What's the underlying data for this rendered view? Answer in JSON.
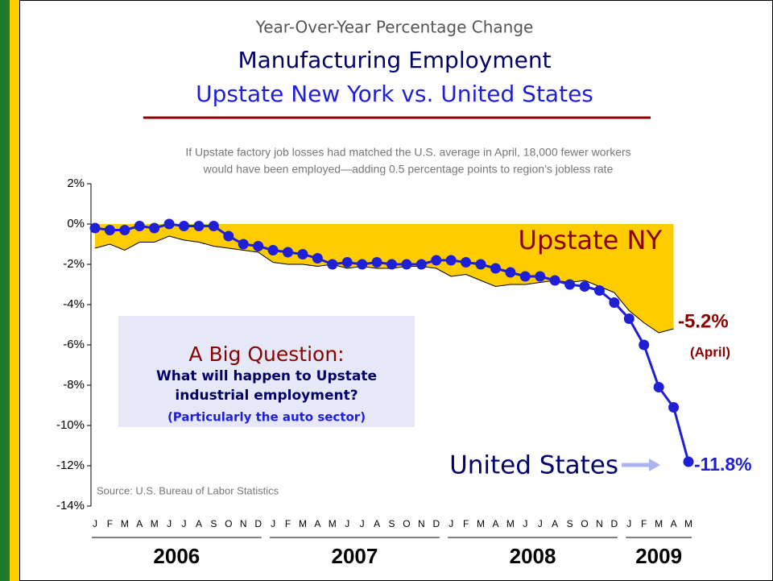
{
  "chart_data": {
    "type": "line",
    "header": "Year-Over-Year Percentage Change",
    "title": "Manufacturing Employment",
    "subtitle": "Upstate New York vs. United States",
    "note": [
      "If Upstate factory job losses had matched the U.S. average in April, 18,000 fewer workers",
      "would have been employed—adding 0.5 percentage points to region’s jobless rate"
    ],
    "source": "Source:  U.S. Bureau of Labor Statistics",
    "question": [
      "A Big Question:",
      "What will happen to Upstate",
      "industrial employment?",
      "(Particularly the auto sector)"
    ],
    "categories": [
      "J",
      "F",
      "M",
      "A",
      "M",
      "J",
      "J",
      "A",
      "S",
      "O",
      "N",
      "D",
      "J",
      "F",
      "M",
      "A",
      "M",
      "J",
      "J",
      "A",
      "S",
      "O",
      "N",
      "D",
      "J",
      "F",
      "M",
      "A",
      "M",
      "J",
      "J",
      "A",
      "S",
      "O",
      "N",
      "D",
      "J",
      "F",
      "M",
      "A",
      "M"
    ],
    "years": [
      "2006",
      "2007",
      "2008",
      "2009"
    ],
    "series": [
      {
        "name": "Upstate NY",
        "color": "#ffcc00",
        "line_color": "#000000",
        "label_color": "#8b0000",
        "values": [
          -1.2,
          -1.0,
          -1.3,
          -0.9,
          -0.9,
          -0.6,
          -0.8,
          -0.9,
          -1.1,
          -1.2,
          -1.3,
          -1.4,
          -1.9,
          -2.0,
          -2.0,
          -2.1,
          -2.0,
          -2.2,
          -2.1,
          -2.2,
          -2.2,
          -2.1,
          -2.1,
          -2.2,
          -2.6,
          -2.5,
          -2.8,
          -3.1,
          -3.0,
          -3.0,
          -2.9,
          -2.8,
          -2.9,
          -2.8,
          -3.1,
          -3.4,
          -4.3,
          -4.9,
          -5.4,
          -5.2,
          null
        ],
        "end_label": "-5.2%",
        "end_note": "(April)"
      },
      {
        "name": "United States",
        "color": "#1f1fd6",
        "label_color": "#000066",
        "values": [
          -0.2,
          -0.3,
          -0.3,
          -0.1,
          -0.2,
          0.0,
          -0.1,
          -0.1,
          -0.1,
          -0.6,
          -1.0,
          -1.1,
          -1.3,
          -1.4,
          -1.5,
          -1.7,
          -2.0,
          -1.9,
          -2.0,
          -1.9,
          -2.0,
          -2.0,
          -2.0,
          -1.8,
          -1.8,
          -1.9,
          -2.0,
          -2.2,
          -2.4,
          -2.6,
          -2.6,
          -2.8,
          -3.0,
          -3.1,
          -3.3,
          -3.9,
          -4.7,
          -6.0,
          -8.1,
          -9.1,
          -11.8
        ],
        "end_label": "-11.8%"
      }
    ],
    "ylim": [
      -14,
      2
    ],
    "yticks": [
      {
        "value": 2,
        "label": "2%"
      },
      {
        "value": 0,
        "label": "0%"
      },
      {
        "value": -2,
        "label": "-2%"
      },
      {
        "value": -4,
        "label": "-4%"
      },
      {
        "value": -6,
        "label": "-6%"
      },
      {
        "value": -8,
        "label": "-8%"
      },
      {
        "value": -10,
        "label": "-10%"
      },
      {
        "value": -12,
        "label": "-12%"
      },
      {
        "value": -14,
        "label": "-14%"
      }
    ]
  }
}
